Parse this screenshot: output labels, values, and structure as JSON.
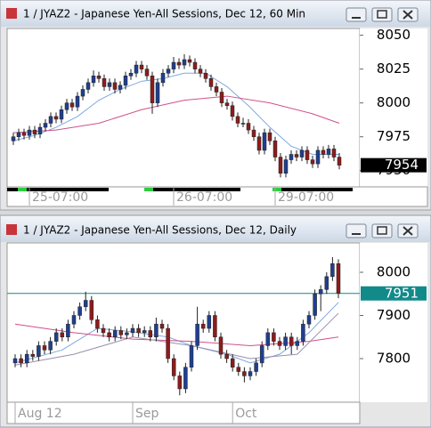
{
  "chart_data": [
    {
      "type": "candlestick",
      "title": "1 / JYAZ2 - Japanese Yen-All Sessions, Dec 12, 60 Min",
      "up_color": "#1f3f8f",
      "down_color": "#8c1c1c",
      "candles": [
        [
          7972,
          7978,
          7969,
          7975
        ],
        [
          7975,
          7981,
          7972,
          7978
        ],
        [
          7978,
          7981,
          7973,
          7976
        ],
        [
          7976,
          7983,
          7973,
          7980
        ],
        [
          7980,
          7983,
          7974,
          7977
        ],
        [
          7977,
          7985,
          7974,
          7982
        ],
        [
          7982,
          7988,
          7979,
          7985
        ],
        [
          7985,
          7993,
          7982,
          7990
        ],
        [
          7990,
          7993,
          7985,
          7988
        ],
        [
          7988,
          7998,
          7985,
          7995
        ],
        [
          7995,
          8003,
          7992,
          8000
        ],
        [
          8000,
          8003,
          7994,
          7997
        ],
        [
          7997,
          8008,
          7994,
          8005
        ],
        [
          8005,
          8013,
          8002,
          8010
        ],
        [
          8010,
          8018,
          8007,
          8015
        ],
        [
          8015,
          8024,
          8012,
          8020
        ],
        [
          8020,
          8023,
          8015,
          8018
        ],
        [
          8018,
          8021,
          8009,
          8012
        ],
        [
          8012,
          8018,
          8009,
          8015
        ],
        [
          8015,
          8018,
          8007,
          8010
        ],
        [
          8010,
          8016,
          8007,
          8013
        ],
        [
          8013,
          8023,
          8010,
          8020
        ],
        [
          8020,
          8025,
          8017,
          8022
        ],
        [
          8022,
          8031,
          8019,
          8028
        ],
        [
          8028,
          8031,
          8022,
          8025
        ],
        [
          8025,
          8028,
          8017,
          8020
        ],
        [
          8020,
          8023,
          7992,
          8000
        ],
        [
          8000,
          8018,
          7997,
          8015
        ],
        [
          8015,
          8025,
          8012,
          8022
        ],
        [
          8022,
          8028,
          8019,
          8025
        ],
        [
          8025,
          8034,
          8022,
          8030
        ],
        [
          8030,
          8033,
          8025,
          8028
        ],
        [
          8028,
          8036,
          8025,
          8032
        ],
        [
          8032,
          8035,
          8027,
          8030
        ],
        [
          8030,
          8033,
          8022,
          8025
        ],
        [
          8025,
          8028,
          8019,
          8022
        ],
        [
          8022,
          8025,
          8015,
          8018
        ],
        [
          8018,
          8021,
          8009,
          8012
        ],
        [
          8012,
          8015,
          8005,
          8008
        ],
        [
          8008,
          8011,
          7997,
          8000
        ],
        [
          8000,
          8003,
          7995,
          7998
        ],
        [
          7998,
          8001,
          7987,
          7990
        ],
        [
          7990,
          7993,
          7982,
          7985
        ],
        [
          7985,
          7989,
          7982,
          7985
        ],
        [
          7985,
          7988,
          7977,
          7980
        ],
        [
          7980,
          7983,
          7972,
          7975
        ],
        [
          7975,
          7978,
          7962,
          7965
        ],
        [
          7965,
          7981,
          7962,
          7978
        ],
        [
          7978,
          7981,
          7969,
          7972
        ],
        [
          7972,
          7975,
          7957,
          7960
        ],
        [
          7960,
          7963,
          7945,
          7948
        ],
        [
          7948,
          7961,
          7945,
          7958
        ],
        [
          7958,
          7965,
          7955,
          7962
        ],
        [
          7962,
          7965,
          7957,
          7960
        ],
        [
          7960,
          7968,
          7957,
          7965
        ],
        [
          7965,
          7968,
          7955,
          7958
        ],
        [
          7958,
          7961,
          7952,
          7955
        ],
        [
          7955,
          7968,
          7952,
          7965
        ],
        [
          7965,
          7968,
          7959,
          7962
        ],
        [
          7962,
          7969,
          7959,
          7966
        ],
        [
          7966,
          7969,
          7957,
          7960
        ],
        [
          7960,
          7963,
          7951,
          7954
        ]
      ],
      "series": [
        {
          "color": "#7fa8e0",
          "x": [
            0,
            4,
            8,
            12,
            16,
            20,
            24,
            28,
            32,
            36,
            40,
            44,
            48,
            52,
            56,
            60,
            61
          ],
          "values": [
            7972,
            7976,
            7982,
            7990,
            8002,
            8010,
            8016,
            8018,
            8022,
            8022,
            8012,
            7998,
            7982,
            7968,
            7962,
            7962,
            7962
          ]
        },
        {
          "color": "#d0508a",
          "x": [
            0,
            8,
            16,
            24,
            32,
            40,
            48,
            56,
            61
          ],
          "values": [
            7978,
            7980,
            7985,
            7995,
            8002,
            8005,
            8000,
            7992,
            7985
          ]
        }
      ],
      "ylim": [
        7938,
        8055
      ],
      "yticks": [
        7950,
        7975,
        8000,
        8025,
        8050
      ],
      "xticks": [
        {
          "value": 3,
          "label": "25-07:00"
        },
        {
          "value": 30,
          "label": "26-07:00"
        },
        {
          "value": 49,
          "label": "29-07:00"
        }
      ],
      "last_price": 7954,
      "last_price_color": "#000000"
    },
    {
      "type": "candlestick",
      "title": "1 / JYAZ2 - Japanese Yen-All Sessions, Dec 12, Daily",
      "up_color": "#1f3f8f",
      "down_color": "#8c1c1c",
      "candles": [
        [
          7790,
          7810,
          7780,
          7800
        ],
        [
          7800,
          7810,
          7780,
          7790
        ],
        [
          7790,
          7820,
          7780,
          7810
        ],
        [
          7810,
          7820,
          7795,
          7805
        ],
        [
          7805,
          7840,
          7795,
          7830
        ],
        [
          7830,
          7840,
          7810,
          7820
        ],
        [
          7820,
          7850,
          7810,
          7840
        ],
        [
          7840,
          7870,
          7830,
          7860
        ],
        [
          7860,
          7870,
          7840,
          7850
        ],
        [
          7850,
          7890,
          7840,
          7880
        ],
        [
          7880,
          7910,
          7870,
          7900
        ],
        [
          7900,
          7930,
          7890,
          7920
        ],
        [
          7920,
          7955,
          7910,
          7935
        ],
        [
          7935,
          7945,
          7880,
          7890
        ],
        [
          7890,
          7900,
          7860,
          7870
        ],
        [
          7870,
          7880,
          7850,
          7860
        ],
        [
          7860,
          7870,
          7840,
          7850
        ],
        [
          7850,
          7875,
          7840,
          7865
        ],
        [
          7865,
          7875,
          7845,
          7855
        ],
        [
          7855,
          7870,
          7845,
          7860
        ],
        [
          7860,
          7880,
          7850,
          7870
        ],
        [
          7870,
          7880,
          7850,
          7860
        ],
        [
          7860,
          7875,
          7850,
          7865
        ],
        [
          7865,
          7875,
          7840,
          7850
        ],
        [
          7850,
          7895,
          7840,
          7880
        ],
        [
          7880,
          7890,
          7860,
          7870
        ],
        [
          7870,
          7880,
          7790,
          7800
        ],
        [
          7800,
          7810,
          7750,
          7760
        ],
        [
          7760,
          7770,
          7715,
          7730
        ],
        [
          7730,
          7790,
          7720,
          7780
        ],
        [
          7780,
          7840,
          7770,
          7830
        ],
        [
          7830,
          7920,
          7820,
          7880
        ],
        [
          7880,
          7890,
          7860,
          7870
        ],
        [
          7870,
          7910,
          7860,
          7900
        ],
        [
          7900,
          7910,
          7840,
          7850
        ],
        [
          7850,
          7860,
          7800,
          7810
        ],
        [
          7810,
          7820,
          7790,
          7800
        ],
        [
          7800,
          7810,
          7770,
          7780
        ],
        [
          7780,
          7790,
          7760,
          7770
        ],
        [
          7770,
          7780,
          7745,
          7760
        ],
        [
          7760,
          7780,
          7750,
          7770
        ],
        [
          7770,
          7800,
          7760,
          7790
        ],
        [
          7790,
          7840,
          7780,
          7830
        ],
        [
          7830,
          7870,
          7820,
          7860
        ],
        [
          7860,
          7870,
          7830,
          7840
        ],
        [
          7840,
          7850,
          7820,
          7830
        ],
        [
          7830,
          7860,
          7820,
          7850
        ],
        [
          7850,
          7860,
          7810,
          7830
        ],
        [
          7830,
          7850,
          7820,
          7840
        ],
        [
          7840,
          7890,
          7830,
          7880
        ],
        [
          7880,
          7910,
          7870,
          7900
        ],
        [
          7900,
          7960,
          7890,
          7950
        ],
        [
          7950,
          7970,
          7910,
          7960
        ],
        [
          7960,
          8000,
          7950,
          7990
        ],
        [
          7990,
          8035,
          7980,
          8020
        ],
        [
          8020,
          8030,
          7940,
          7951
        ]
      ],
      "series": [
        {
          "color": "#7fa8e0",
          "x": [
            0,
            8,
            14,
            20,
            26,
            30,
            36,
            40,
            45,
            50,
            55
          ],
          "values": [
            7790,
            7820,
            7870,
            7862,
            7850,
            7830,
            7810,
            7790,
            7810,
            7860,
            7930
          ]
        },
        {
          "color": "#d0508a",
          "x": [
            0,
            10,
            20,
            30,
            40,
            50,
            55
          ],
          "values": [
            7880,
            7860,
            7845,
            7840,
            7830,
            7840,
            7850
          ]
        },
        {
          "color": "#9a8fb0",
          "x": [
            0,
            10,
            20,
            30,
            40,
            48,
            55
          ],
          "values": [
            7785,
            7810,
            7850,
            7830,
            7800,
            7810,
            7905
          ]
        }
      ],
      "ylim": [
        7699,
        8068
      ],
      "yticks": [
        7800,
        7900,
        8000
      ],
      "xticks": [
        {
          "value": 0,
          "label": "Aug 12"
        },
        {
          "value": 20,
          "label": "Sep"
        },
        {
          "value": 37,
          "label": "Oct"
        }
      ],
      "last_price": 7951,
      "last_price_color": "#128a8a"
    }
  ]
}
